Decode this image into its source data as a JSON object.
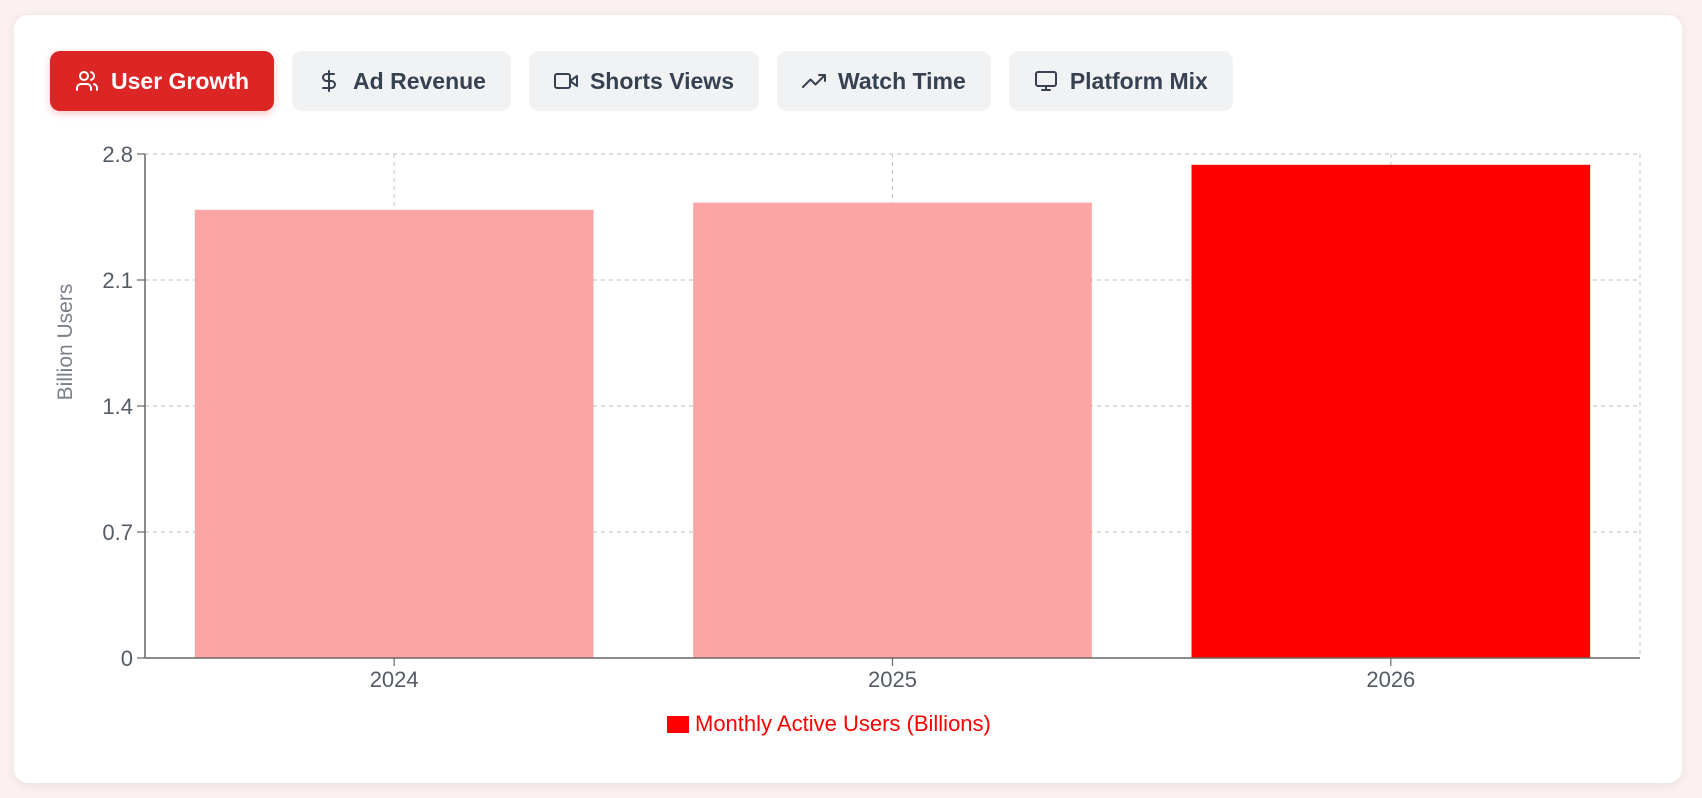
{
  "tabs": [
    {
      "label": "User Growth",
      "icon": "users-icon",
      "active": true
    },
    {
      "label": "Ad Revenue",
      "icon": "dollar-icon",
      "active": false
    },
    {
      "label": "Shorts Views",
      "icon": "video-icon",
      "active": false
    },
    {
      "label": "Watch Time",
      "icon": "trending-up-icon",
      "active": false
    },
    {
      "label": "Platform Mix",
      "icon": "monitor-icon",
      "active": false
    }
  ],
  "colors": {
    "accent": "#dc2626",
    "bar_highlight": "#ff0000",
    "bar_muted": "#fca5a5",
    "grid": "#cccccc"
  },
  "chart_data": {
    "type": "bar",
    "categories": [
      "2024",
      "2025",
      "2026"
    ],
    "series": [
      {
        "name": "Monthly Active Users (Billions)",
        "values": [
          2.49,
          2.53,
          2.74
        ]
      }
    ],
    "highlight_index": 2,
    "ylabel": "Billion Users",
    "xlabel": "",
    "ylim": [
      0,
      2.8
    ],
    "yticks": [
      "0",
      "0.7",
      "1.4",
      "2.1",
      "2.8"
    ],
    "grid": true,
    "legend_position": "bottom-center"
  }
}
